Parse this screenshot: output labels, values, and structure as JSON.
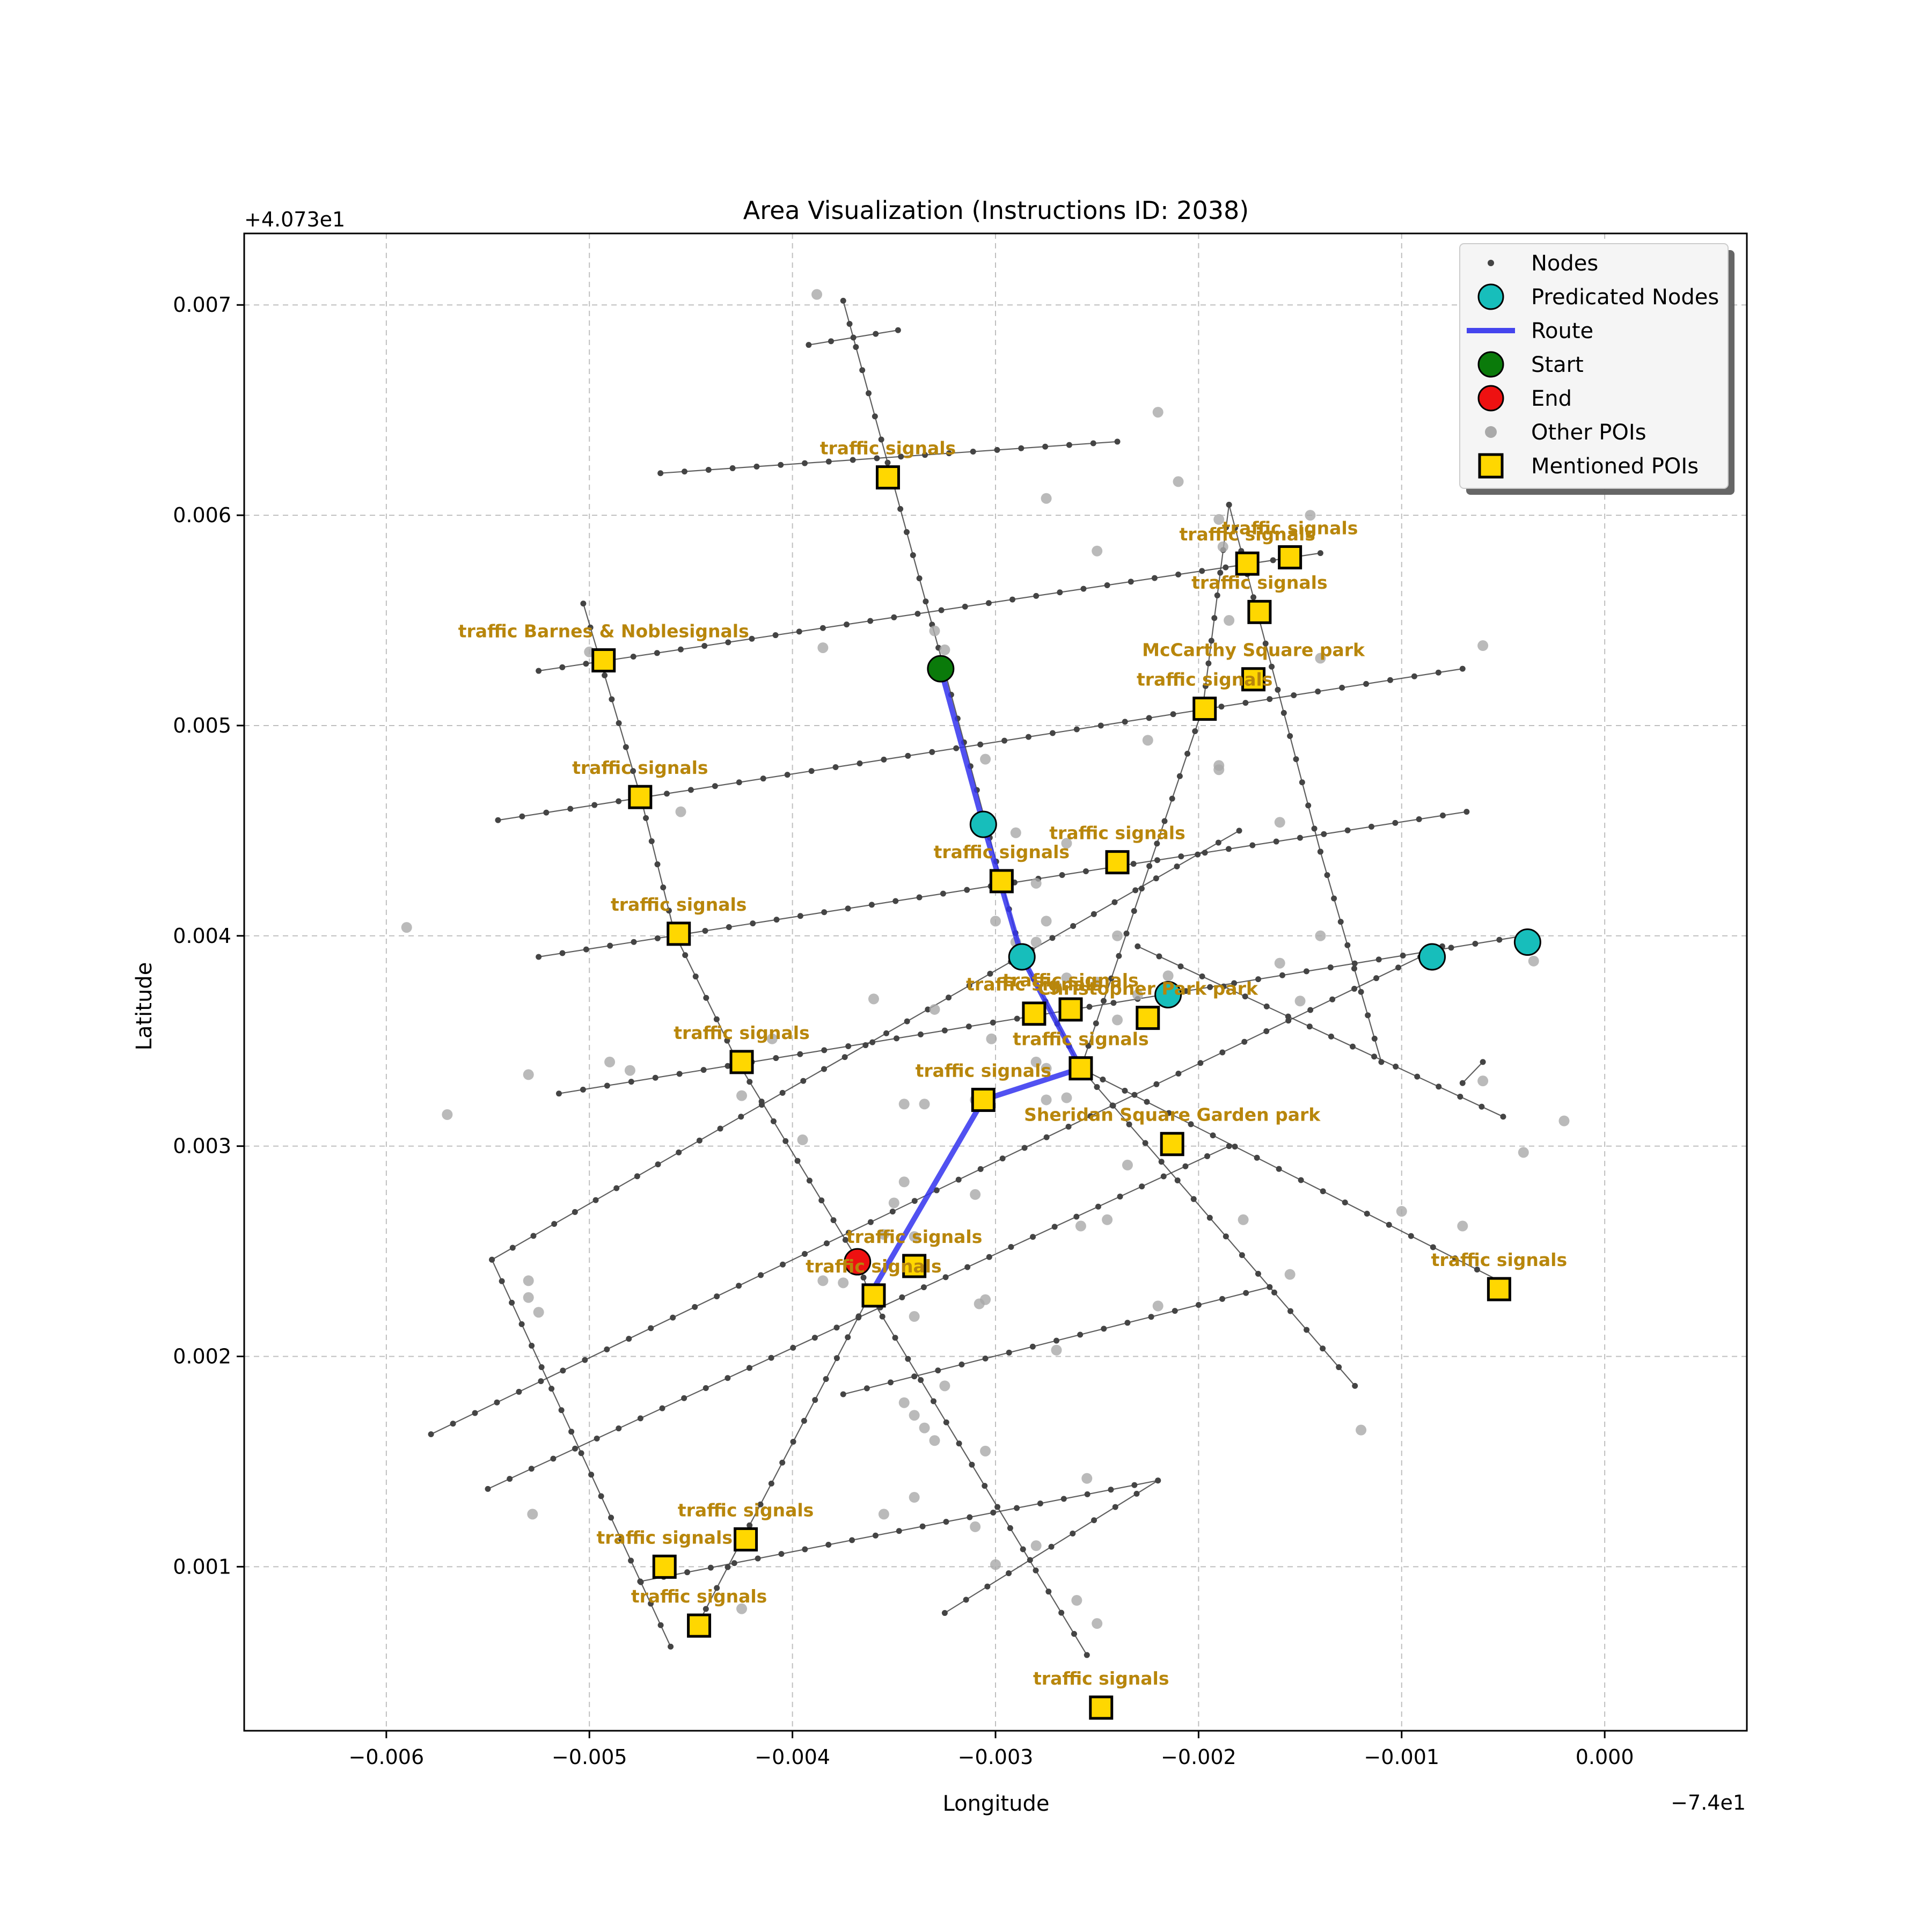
{
  "chart_data": {
    "type": "scatter",
    "title": "Area Visualization (Instructions ID: 2038)",
    "xlabel": "Longitude",
    "ylabel": "Latitude",
    "x_offset_label": "−7.4e1",
    "y_offset_label": "+4.073e1",
    "xlim": [
      -0.0067,
      0.0007
    ],
    "ylim": [
      0.00022,
      0.00734
    ],
    "x_ticks": [
      -0.006,
      -0.005,
      -0.004,
      -0.003,
      -0.002,
      -0.001,
      0.0
    ],
    "x_tick_labels": [
      "−0.006",
      "−0.005",
      "−0.004",
      "−0.003",
      "−0.002",
      "−0.001",
      "0.000"
    ],
    "y_ticks": [
      0.001,
      0.002,
      0.003,
      0.004,
      0.005,
      0.006,
      0.007
    ],
    "y_tick_labels": [
      "0.001",
      "0.002",
      "0.003",
      "0.004",
      "0.005",
      "0.006",
      "0.007"
    ],
    "grid": true,
    "legend_position": "top-right",
    "legend": [
      {
        "key": "nodes",
        "label": "Nodes"
      },
      {
        "key": "predicted",
        "label": "Predicated Nodes"
      },
      {
        "key": "route",
        "label": "Route"
      },
      {
        "key": "start",
        "label": "Start"
      },
      {
        "key": "end",
        "label": "End"
      },
      {
        "key": "other_pois",
        "label": "Other POIs"
      },
      {
        "key": "mentioned",
        "label": "Mentioned POIs"
      }
    ],
    "colors": {
      "nodes": "#444444",
      "edges": "#444444",
      "predicted": "#17bebb",
      "route": "#3333ee",
      "start": "#0a7a0a",
      "end": "#ee1111",
      "other_pois": "#a9a9a9",
      "mentioned": "#ffd700",
      "label": "#b8860b"
    },
    "streets": [
      [
        [
          -0.00465,
          0.0062
        ],
        [
          -0.0024,
          0.00635
        ]
      ],
      [
        [
          -0.00392,
          0.00681
        ],
        [
          -0.00348,
          0.00688
        ]
      ],
      [
        [
          -0.00525,
          0.00526
        ],
        [
          -0.0014,
          0.00582
        ]
      ],
      [
        [
          -0.00545,
          0.00455
        ],
        [
          -0.0007,
          0.00527
        ]
      ],
      [
        [
          -0.00525,
          0.0039
        ],
        [
          -0.00068,
          0.00459
        ]
      ],
      [
        [
          -0.00515,
          0.00325
        ],
        [
          -0.0004,
          0.004
        ]
      ],
      [
        [
          -0.00548,
          0.00246
        ],
        [
          -0.0018,
          0.0045
        ]
      ],
      [
        [
          -0.00578,
          0.00163
        ],
        [
          -0.0008,
          0.00395
        ]
      ],
      [
        [
          -0.0055,
          0.00137
        ],
        [
          -0.00185,
          0.003
        ]
      ],
      [
        [
          -0.00475,
          0.00093
        ],
        [
          -0.0022,
          0.00141
        ]
      ],
      [
        [
          -0.00325,
          0.00078
        ],
        [
          -0.0022,
          0.00141
        ]
      ],
      [
        [
          -0.00375,
          0.00182
        ],
        [
          -0.00165,
          0.00233
        ]
      ],
      [
        [
          -0.00375,
          0.00702
        ],
        [
          -0.00325,
          0.00526
        ]
      ],
      [
        [
          -0.00325,
          0.00526
        ],
        [
          -0.00287,
          0.0039
        ]
      ],
      [
        [
          -0.00287,
          0.0039
        ],
        [
          -0.00258,
          0.00337
        ]
      ],
      [
        [
          -0.00258,
          0.00337
        ],
        [
          -0.00123,
          0.00186
        ]
      ],
      [
        [
          -0.00258,
          0.00337
        ],
        [
          -0.00052,
          0.00236
        ]
      ],
      [
        [
          -0.00503,
          0.00558
        ],
        [
          -0.00475,
          0.00467
        ]
      ],
      [
        [
          -0.00475,
          0.00467
        ],
        [
          -0.00458,
          0.00401
        ]
      ],
      [
        [
          -0.00458,
          0.00401
        ],
        [
          -0.00427,
          0.0034
        ]
      ],
      [
        [
          -0.00427,
          0.0034
        ],
        [
          -0.00368,
          0.00246
        ]
      ],
      [
        [
          -0.00368,
          0.00246
        ],
        [
          -0.00362,
          0.00229
        ]
      ],
      [
        [
          -0.00362,
          0.00229
        ],
        [
          -0.00255,
          0.00058
        ]
      ],
      [
        [
          -0.00548,
          0.00246
        ],
        [
          -0.0046,
          0.00062
        ]
      ],
      [
        [
          -0.00362,
          0.00229
        ],
        [
          -0.00448,
          0.0007
        ]
      ],
      [
        [
          -0.00258,
          0.00337
        ],
        [
          -0.00198,
          0.00508
        ]
      ],
      [
        [
          -0.00198,
          0.00508
        ],
        [
          -0.00185,
          0.00605
        ]
      ],
      [
        [
          -0.00185,
          0.00605
        ],
        [
          -0.0014,
          0.0044
        ]
      ],
      [
        [
          -0.0014,
          0.0044
        ],
        [
          -0.0011,
          0.0034
        ]
      ],
      [
        [
          -0.0023,
          0.00395
        ],
        [
          -0.0005,
          0.00314
        ]
      ],
      [
        [
          -0.0007,
          0.0033
        ],
        [
          -0.0006,
          0.0034
        ]
      ]
    ],
    "other_pois": [
      [
        -0.00388,
        0.00705
      ],
      [
        -0.0022,
        0.00649
      ],
      [
        -0.00275,
        0.00608
      ],
      [
        -0.0021,
        0.00616
      ],
      [
        -0.00145,
        0.006
      ],
      [
        -0.0025,
        0.00583
      ],
      [
        -0.0019,
        0.00598
      ],
      [
        -0.00188,
        0.00585
      ],
      [
        -0.005,
        0.00535
      ],
      [
        -0.00385,
        0.00537
      ],
      [
        -0.0033,
        0.00545
      ],
      [
        -0.00325,
        0.00536
      ],
      [
        -0.00185,
        0.0055
      ],
      [
        -0.0006,
        0.00538
      ],
      [
        -0.0014,
        0.00532
      ],
      [
        -0.00225,
        0.00493
      ],
      [
        -0.00305,
        0.00484
      ],
      [
        -0.0019,
        0.00481
      ],
      [
        -0.0019,
        0.00479
      ],
      [
        -0.0016,
        0.00454
      ],
      [
        -0.00455,
        0.00459
      ],
      [
        -0.0029,
        0.00449
      ],
      [
        -0.00265,
        0.00444
      ],
      [
        -0.0028,
        0.00425
      ],
      [
        -0.003,
        0.00407
      ],
      [
        -0.00275,
        0.00407
      ],
      [
        -0.0029,
        0.00397
      ],
      [
        -0.0028,
        0.00397
      ],
      [
        -0.0024,
        0.004
      ],
      [
        -0.0059,
        0.00404
      ],
      [
        -0.0014,
        0.004
      ],
      [
        -0.0016,
        0.00387
      ],
      [
        -0.00035,
        0.00388
      ],
      [
        -0.0036,
        0.0037
      ],
      [
        -0.0033,
        0.00365
      ],
      [
        -0.00265,
        0.0038
      ],
      [
        -0.0025,
        0.00378
      ],
      [
        -0.0027,
        0.00376
      ],
      [
        -0.0023,
        0.00372
      ],
      [
        -0.0015,
        0.00369
      ],
      [
        -0.0024,
        0.0036
      ],
      [
        -0.00215,
        0.00381
      ],
      [
        -0.0041,
        0.00351
      ],
      [
        -0.00302,
        0.00351
      ],
      [
        -0.0028,
        0.0034
      ],
      [
        -0.00275,
        0.00337
      ],
      [
        -0.0049,
        0.0034
      ],
      [
        -0.0048,
        0.00336
      ],
      [
        -0.0053,
        0.00334
      ],
      [
        -0.0057,
        0.00315
      ],
      [
        -0.00425,
        0.00324
      ],
      [
        -0.00345,
        0.0032
      ],
      [
        -0.00335,
        0.0032
      ],
      [
        -0.0031,
        0.00322
      ],
      [
        -0.00275,
        0.00322
      ],
      [
        -0.00265,
        0.00323
      ],
      [
        -0.0006,
        0.00331
      ],
      [
        -0.0002,
        0.00312
      ],
      [
        -0.0004,
        0.00297
      ],
      [
        -0.00395,
        0.00303
      ],
      [
        -0.00235,
        0.00291
      ],
      [
        -0.00345,
        0.00283
      ],
      [
        -0.0035,
        0.00273
      ],
      [
        -0.0031,
        0.00277
      ],
      [
        -0.00258,
        0.00262
      ],
      [
        -0.00245,
        0.00265
      ],
      [
        -0.00178,
        0.00265
      ],
      [
        -0.001,
        0.00269
      ],
      [
        -0.0007,
        0.00262
      ],
      [
        -0.00355,
        0.00258
      ],
      [
        -0.0034,
        0.00257
      ],
      [
        -0.0053,
        0.00236
      ],
      [
        -0.0053,
        0.00228
      ],
      [
        -0.00525,
        0.00221
      ],
      [
        -0.00385,
        0.00236
      ],
      [
        -0.00375,
        0.00235
      ],
      [
        -0.0034,
        0.00219
      ],
      [
        -0.00308,
        0.00225
      ],
      [
        -0.00305,
        0.00227
      ],
      [
        -0.0022,
        0.00224
      ],
      [
        -0.00155,
        0.00239
      ],
      [
        -0.0027,
        0.00203
      ],
      [
        -0.00325,
        0.00186
      ],
      [
        -0.00345,
        0.00178
      ],
      [
        -0.0034,
        0.00172
      ],
      [
        -0.00335,
        0.00166
      ],
      [
        -0.0033,
        0.0016
      ],
      [
        -0.00305,
        0.00155
      ],
      [
        -0.0012,
        0.00165
      ],
      [
        -0.00255,
        0.00142
      ],
      [
        -0.0034,
        0.00133
      ],
      [
        -0.00355,
        0.00125
      ],
      [
        -0.00528,
        0.00125
      ],
      [
        -0.0031,
        0.00119
      ],
      [
        -0.0028,
        0.0011
      ],
      [
        -0.003,
        0.00101
      ],
      [
        -0.0026,
        0.00084
      ],
      [
        -0.0025,
        0.00073
      ],
      [
        -0.00425,
        0.0008
      ]
    ],
    "route": [
      [
        -0.00327,
        0.00527
      ],
      [
        -0.00306,
        0.00453
      ],
      [
        -0.00287,
        0.0039
      ],
      [
        -0.00258,
        0.00337
      ],
      [
        -0.00306,
        0.00322
      ],
      [
        -0.00362,
        0.00229
      ]
    ],
    "start": [
      -0.00327,
      0.00527
    ],
    "end": [
      -0.00368,
      0.00245
    ],
    "predicted_nodes": [
      [
        -0.00306,
        0.00453
      ],
      [
        -0.00287,
        0.0039
      ],
      [
        -0.00215,
        0.00372
      ],
      [
        -0.00085,
        0.0039
      ],
      [
        -0.00038,
        0.00397
      ]
    ],
    "mentioned_pois": [
      {
        "x": -0.00353,
        "y": 0.00618,
        "label": "traffic signals",
        "lx": -0.00353,
        "ly": 0.00629
      },
      {
        "x": -0.00493,
        "y": 0.00531,
        "label": "traffic Barnes & Noblesignals",
        "lx": -0.00493,
        "ly": 0.00542
      },
      {
        "x": -0.00176,
        "y": 0.00577,
        "label": "traffic signals",
        "lx": -0.00176,
        "ly": 0.00588
      },
      {
        "x": -0.00155,
        "y": 0.0058,
        "label": "traffic signals",
        "lx": -0.00155,
        "ly": 0.00591
      },
      {
        "x": -0.0017,
        "y": 0.00554,
        "label": "traffic signals",
        "lx": -0.0017,
        "ly": 0.00565
      },
      {
        "x": -0.00173,
        "y": 0.00522,
        "label": "McCarthy Square   park",
        "lx": -0.00173,
        "ly": 0.00533
      },
      {
        "x": -0.00197,
        "y": 0.00508,
        "label": "traffic signals",
        "lx": -0.00197,
        "ly": 0.00519
      },
      {
        "x": -0.00475,
        "y": 0.00466,
        "label": "traffic signals",
        "lx": -0.00475,
        "ly": 0.00477
      },
      {
        "x": -0.0024,
        "y": 0.00435,
        "label": "traffic signals",
        "lx": -0.0024,
        "ly": 0.00446
      },
      {
        "x": -0.00297,
        "y": 0.00426,
        "label": "traffic signals",
        "lx": -0.00297,
        "ly": 0.00437
      },
      {
        "x": -0.00456,
        "y": 0.00401,
        "label": "traffic signals",
        "lx": -0.00456,
        "ly": 0.00412
      },
      {
        "x": -0.00281,
        "y": 0.00363,
        "label": "traffic signals",
        "lx": -0.00281,
        "ly": 0.00374
      },
      {
        "x": -0.00263,
        "y": 0.00365,
        "label": "traffic signals",
        "lx": -0.00263,
        "ly": 0.00376
      },
      {
        "x": -0.00225,
        "y": 0.00361,
        "label": "Christopher Park   park",
        "lx": -0.00225,
        "ly": 0.00372
      },
      {
        "x": -0.00425,
        "y": 0.0034,
        "label": "traffic signals",
        "lx": -0.00425,
        "ly": 0.00351
      },
      {
        "x": -0.00258,
        "y": 0.00337,
        "label": "traffic signals",
        "lx": -0.00258,
        "ly": 0.00348
      },
      {
        "x": -0.00306,
        "y": 0.00322,
        "label": "traffic signals",
        "lx": -0.00306,
        "ly": 0.00333
      },
      {
        "x": -0.00213,
        "y": 0.00301,
        "label": "Sheridan Square Garden   park",
        "lx": -0.00213,
        "ly": 0.00312
      },
      {
        "x": -0.0034,
        "y": 0.00243,
        "label": "traffic signals",
        "lx": -0.0034,
        "ly": 0.00254
      },
      {
        "x": -0.0036,
        "y": 0.00229,
        "label": "traffic signals",
        "lx": -0.0036,
        "ly": 0.0024
      },
      {
        "x": -0.00052,
        "y": 0.00232,
        "label": "traffic signals",
        "lx": -0.00052,
        "ly": 0.00243
      },
      {
        "x": -0.00423,
        "y": 0.00113,
        "label": "traffic signals",
        "lx": -0.00423,
        "ly": 0.00124
      },
      {
        "x": -0.00463,
        "y": 0.001,
        "label": "traffic signals",
        "lx": -0.00463,
        "ly": 0.00111
      },
      {
        "x": -0.00446,
        "y": 0.00072,
        "label": "traffic signals",
        "lx": -0.00446,
        "ly": 0.00083
      },
      {
        "x": -0.00248,
        "y": 0.00033,
        "label": "traffic signals",
        "lx": -0.00248,
        "ly": 0.00044
      }
    ]
  }
}
